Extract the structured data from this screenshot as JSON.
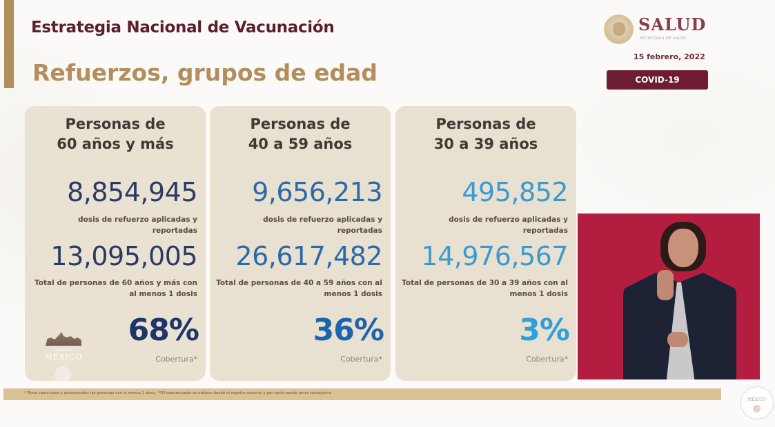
{
  "header": {
    "title": "Estrategia Nacional de Vacunación",
    "subtitle": "Refuerzos, grupos de edad"
  },
  "branding": {
    "logo_word": "SALUD",
    "logo_sub": "SECRETARÍA DE SALUD",
    "date": "15 febrero, 2022",
    "badge": "COVID-19",
    "gob_small": "GOBIERNO DE",
    "gob_text": "MÉXICO"
  },
  "colors": {
    "title": "#5a1e2c",
    "subtitle": "#b38e5d",
    "badge_bg": "#6c1d33",
    "card_bg": "#e8e0d0",
    "pct_60": "#1f3468",
    "pct_40": "#1d63ad",
    "pct_30": "#2fa0dc",
    "interpreter_bg": "#b31d40"
  },
  "cards": [
    {
      "title_line1": "Personas de",
      "title_line2": "60 años y más",
      "doses": "8,854,945",
      "doses_label": "dosis de refuerzo aplicadas y reportadas",
      "total": "13,095,005",
      "total_label": "Total de personas de 60 años y más con al menos 1 dosis",
      "coverage_pct": "68%",
      "coverage_label": "Cobertura*"
    },
    {
      "title_line1": "Personas de",
      "title_line2": "40 a 59 años",
      "doses": "9,656,213",
      "doses_label": "dosis de refuerzo aplicadas y reportadas",
      "total": "26,617,482",
      "total_label": "Total de personas de 40 a 59 años con al menos 1 dosis",
      "coverage_pct": "36%",
      "coverage_label": "Cobertura*"
    },
    {
      "title_line1": "Personas de",
      "title_line2": "30 a 39 años",
      "doses": "495,852",
      "doses_label": "dosis de refuerzo aplicadas y reportadas",
      "total": "14,976,567",
      "total_label": "Total de personas de 30 a 39 años con al menos 1 dosis",
      "coverage_pct": "3%",
      "coverage_label": "Cobertura*"
    }
  ],
  "footer": {
    "footnote": "* Toma como base y denominador las personas con al menos 1 dosis. **El denominador se obtiene desde el registro nominal y por tanto puede tener subregistro.",
    "seal_text": "MÉXICO"
  }
}
